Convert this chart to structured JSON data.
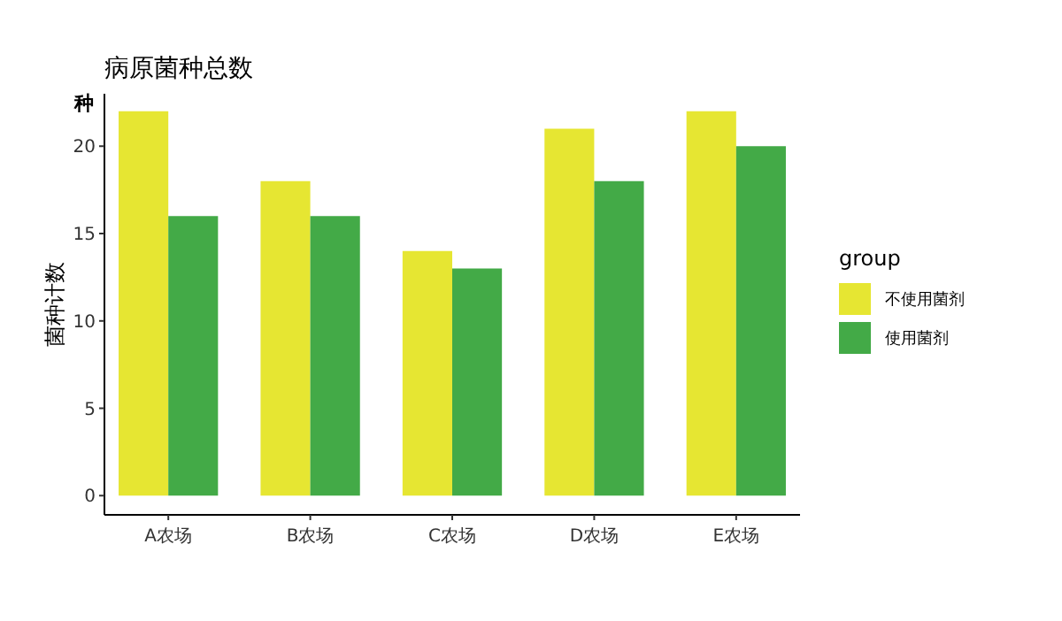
{
  "chart_data": {
    "type": "bar",
    "title": "病原菌种总数",
    "ylabel": "菌种计数",
    "legend_title": "group",
    "annotations": [
      "种"
    ],
    "categories": [
      "A农场",
      "B农场",
      "C农场",
      "D农场",
      "E农场"
    ],
    "series": [
      {
        "name": "不使用菌剂",
        "color": "#e6e632",
        "values": [
          22,
          18,
          14,
          21,
          22
        ]
      },
      {
        "name": "使用菌剂",
        "color": "#43aa47",
        "values": [
          16,
          16,
          13,
          18,
          20
        ]
      }
    ],
    "ylim": [
      -1.1,
      23
    ],
    "yticks": [
      0,
      5,
      10,
      15,
      20
    ],
    "grid": false,
    "legend": "right"
  }
}
